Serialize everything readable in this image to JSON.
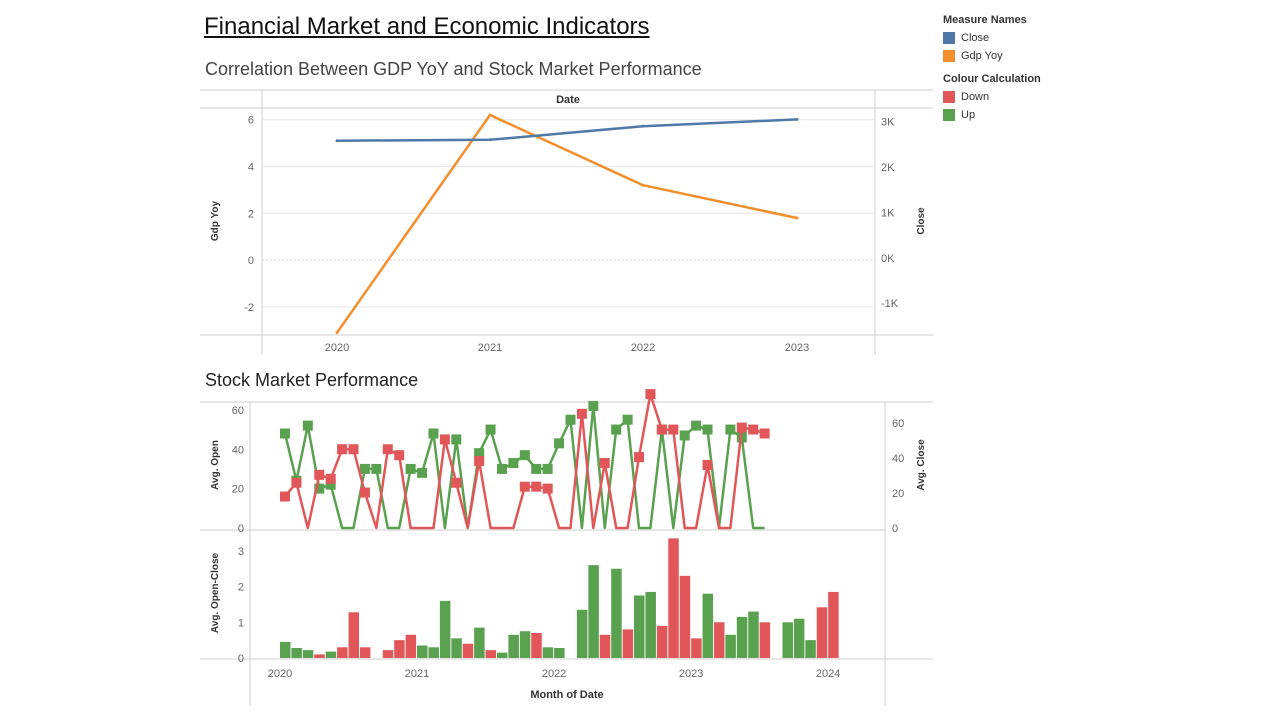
{
  "dashboard": {
    "title": "Financial Market and Economic Indicators"
  },
  "legend": {
    "measure_names_title": "Measure Names",
    "measure_names": [
      {
        "label": "Close",
        "color": "#4e79a7"
      },
      {
        "label": "Gdp Yoy",
        "color": "#f28e2b"
      }
    ],
    "colour_calc_title": "Colour Calculation",
    "colour_calc": [
      {
        "label": "Down",
        "color": "#e15759"
      },
      {
        "label": "Up",
        "color": "#59a14f"
      }
    ]
  },
  "chart_data": [
    {
      "type": "line",
      "title": "Correlation Between GDP YoY and Stock Market Performance",
      "header": "Date",
      "x": [
        "2020",
        "2021",
        "2022",
        "2023"
      ],
      "ylabel": "Gdp Yoy",
      "y2label": "Close",
      "ylim": [
        -3.2,
        6.5
      ],
      "y2lim": [
        -1700,
        3300
      ],
      "y_ticks": [
        {
          "v": 6,
          "label": "6"
        },
        {
          "v": 4,
          "label": "4"
        },
        {
          "v": 2,
          "label": "2"
        },
        {
          "v": 0,
          "label": "0"
        },
        {
          "v": -2,
          "label": "-2"
        }
      ],
      "y2_ticks": [
        {
          "v": 3000,
          "label": "3K"
        },
        {
          "v": 2000,
          "label": "2K"
        },
        {
          "v": 1000,
          "label": "1K"
        },
        {
          "v": 0,
          "label": "0K"
        },
        {
          "v": -1000,
          "label": "-1K"
        }
      ],
      "series": [
        {
          "name": "Gdp Yoy",
          "axis": "left",
          "color": "#f28e2b",
          "values": [
            -3.1,
            6.2,
            3.2,
            1.8
          ]
        },
        {
          "name": "Close",
          "axis": "right",
          "color": "#4e79a7",
          "values": [
            2580,
            2600,
            2900,
            3050
          ]
        }
      ]
    },
    {
      "type": "line",
      "title": "Stock Market Performance",
      "ylabel": "Avg. Open",
      "y2label": "Avg. Close",
      "ylim": [
        0,
        64
      ],
      "y2lim": [
        0,
        72
      ],
      "y_ticks": [
        {
          "v": 60,
          "label": "60"
        },
        {
          "v": 40,
          "label": "40"
        },
        {
          "v": 20,
          "label": "20"
        },
        {
          "v": 0,
          "label": "0"
        }
      ],
      "y2_ticks": [
        {
          "v": 60,
          "label": "60"
        },
        {
          "v": 40,
          "label": "40"
        },
        {
          "v": 20,
          "label": "20"
        },
        {
          "v": 0,
          "label": "0"
        }
      ],
      "series": [
        {
          "name": "Up",
          "color": "#59a14f",
          "values": [
            48,
            24,
            52,
            20,
            22,
            0,
            0,
            30,
            30,
            0,
            0,
            30,
            28,
            48,
            0,
            45,
            0,
            38,
            50,
            30,
            33,
            37,
            30,
            30,
            43,
            55,
            0,
            62,
            0,
            50,
            55,
            0,
            0,
            50,
            0,
            47,
            52,
            50,
            0,
            50,
            46,
            0,
            0
          ]
        },
        {
          "name": "Down",
          "color": "#e15759",
          "values": [
            16,
            23,
            0,
            27,
            25,
            40,
            40,
            18,
            0,
            40,
            37,
            0,
            0,
            0,
            45,
            23,
            0,
            34,
            0,
            0,
            0,
            21,
            21,
            20,
            0,
            0,
            58,
            0,
            33,
            0,
            0,
            36,
            68,
            50,
            50,
            0,
            0,
            32,
            0,
            0,
            51,
            50,
            48
          ]
        }
      ]
    },
    {
      "type": "bar",
      "xlabel": "Month of Date",
      "ylabel": "Avg. Open-Close",
      "ylim": [
        0,
        3.5
      ],
      "y_ticks": [
        {
          "v": 3,
          "label": "3"
        },
        {
          "v": 2,
          "label": "2"
        },
        {
          "v": 1,
          "label": "1"
        },
        {
          "v": 0,
          "label": "0"
        }
      ],
      "x_ticks": [
        {
          "index": 0,
          "label": "2020"
        },
        {
          "index": 12,
          "label": "2021"
        },
        {
          "index": 24,
          "label": "2022"
        },
        {
          "index": 36,
          "label": "2023"
        },
        {
          "index": 48,
          "label": "2024"
        }
      ],
      "values": [
        0.45,
        0.28,
        0.22,
        0.1,
        0.18,
        0.3,
        1.28,
        0.3,
        0.0,
        0.22,
        0.5,
        0.65,
        0.35,
        0.3,
        1.6,
        0.55,
        0.4,
        0.85,
        0.22,
        0.15,
        0.65,
        0.75,
        0.7,
        0.3,
        0.28,
        0.0,
        1.35,
        2.6,
        0.65,
        2.5,
        0.8,
        1.75,
        1.85,
        0.9,
        3.35,
        2.3,
        0.55,
        1.8,
        1.0,
        0.65,
        1.15,
        1.3,
        1.0,
        0.0,
        1.0,
        1.1,
        0.5,
        1.42,
        1.85
      ],
      "colors": [
        "Up",
        "Up",
        "Up",
        "Down",
        "Up",
        "Down",
        "Down",
        "Down",
        "Up",
        "Down",
        "Down",
        "Down",
        "Up",
        "Up",
        "Up",
        "Up",
        "Down",
        "Up",
        "Down",
        "Up",
        "Up",
        "Up",
        "Down",
        "Up",
        "Up",
        "Up",
        "Up",
        "Up",
        "Down",
        "Up",
        "Down",
        "Up",
        "Up",
        "Down",
        "Down",
        "Down",
        "Down",
        "Up",
        "Down",
        "Up",
        "Up",
        "Up",
        "Down",
        "Up",
        "Up",
        "Up",
        "Up",
        "Down",
        "Down"
      ]
    }
  ]
}
